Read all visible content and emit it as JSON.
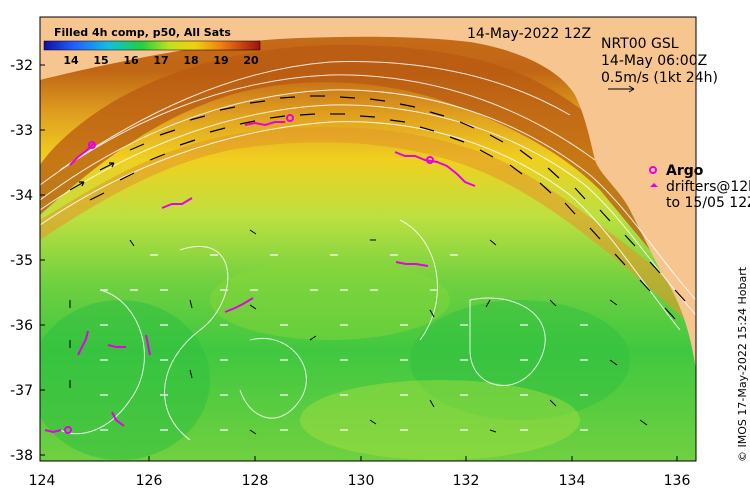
{
  "map": {
    "date_label": "14-May-2022 12Z",
    "colorbar": {
      "title": "Filled 4h comp, p50, All Sats",
      "ticks": [
        "14",
        "15",
        "16",
        "17",
        "18",
        "19",
        "20"
      ]
    },
    "product": {
      "line1": "NRT00 GSL",
      "line2": "14-May 06:00Z",
      "line3": "0.5m/s (1kt 24h)"
    },
    "legend": {
      "argo_label": "Argo",
      "drifters_line1": "drifters@12h",
      "drifters_line2": "to 15/05 12Z"
    },
    "credit": "© IMOS 17-May-2022 15:24 Hobart",
    "y_ticks": [
      "-32",
      "-33",
      "-34",
      "-35",
      "-36",
      "-37",
      "-38"
    ],
    "x_ticks": [
      "124",
      "126",
      "128",
      "130",
      "132",
      "134",
      "136"
    ],
    "colors": {
      "land": "#f7c58f",
      "argo": "#e600e6",
      "drifter": "#e600e6"
    }
  }
}
